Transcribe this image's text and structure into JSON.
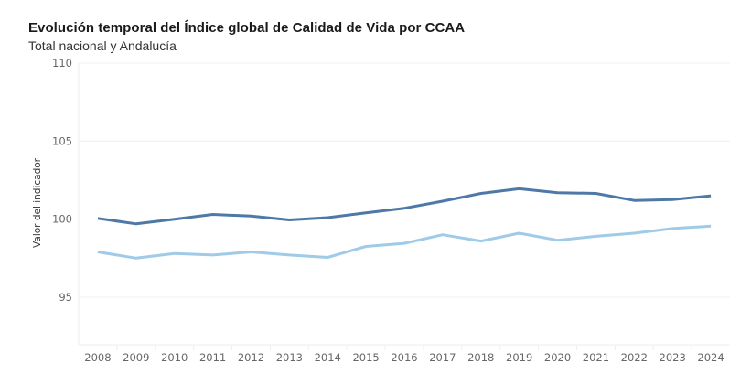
{
  "chart_data": {
    "type": "line",
    "title": "Evolución temporal del Índice global de Calidad de Vida por CCAA",
    "subtitle": "Total nacional y Andalucía",
    "xlabel": "",
    "ylabel": "Valor del indicador",
    "ylim": [
      92,
      110
    ],
    "yticks": [
      95,
      100,
      105,
      110
    ],
    "grid": true,
    "legend": "none",
    "x": [
      "2008",
      "2009",
      "2010",
      "2011",
      "2012",
      "2013",
      "2014",
      "2015",
      "2016",
      "2017",
      "2018",
      "2019",
      "2020",
      "2021",
      "2022",
      "2023",
      "2024"
    ],
    "series": [
      {
        "name": "Total nacional",
        "color": "#4e79a7",
        "values": [
          100.05,
          99.7,
          100.0,
          100.3,
          100.2,
          99.95,
          100.1,
          100.4,
          100.7,
          101.15,
          101.65,
          101.95,
          101.7,
          101.65,
          101.2,
          101.25,
          101.5
        ]
      },
      {
        "name": "Andalucía",
        "color": "#a0cbe8",
        "values": [
          97.9,
          97.5,
          97.8,
          97.7,
          97.9,
          97.7,
          97.55,
          98.25,
          98.45,
          99.0,
          98.6,
          99.1,
          98.65,
          98.9,
          99.1,
          99.4,
          99.55
        ]
      }
    ]
  }
}
